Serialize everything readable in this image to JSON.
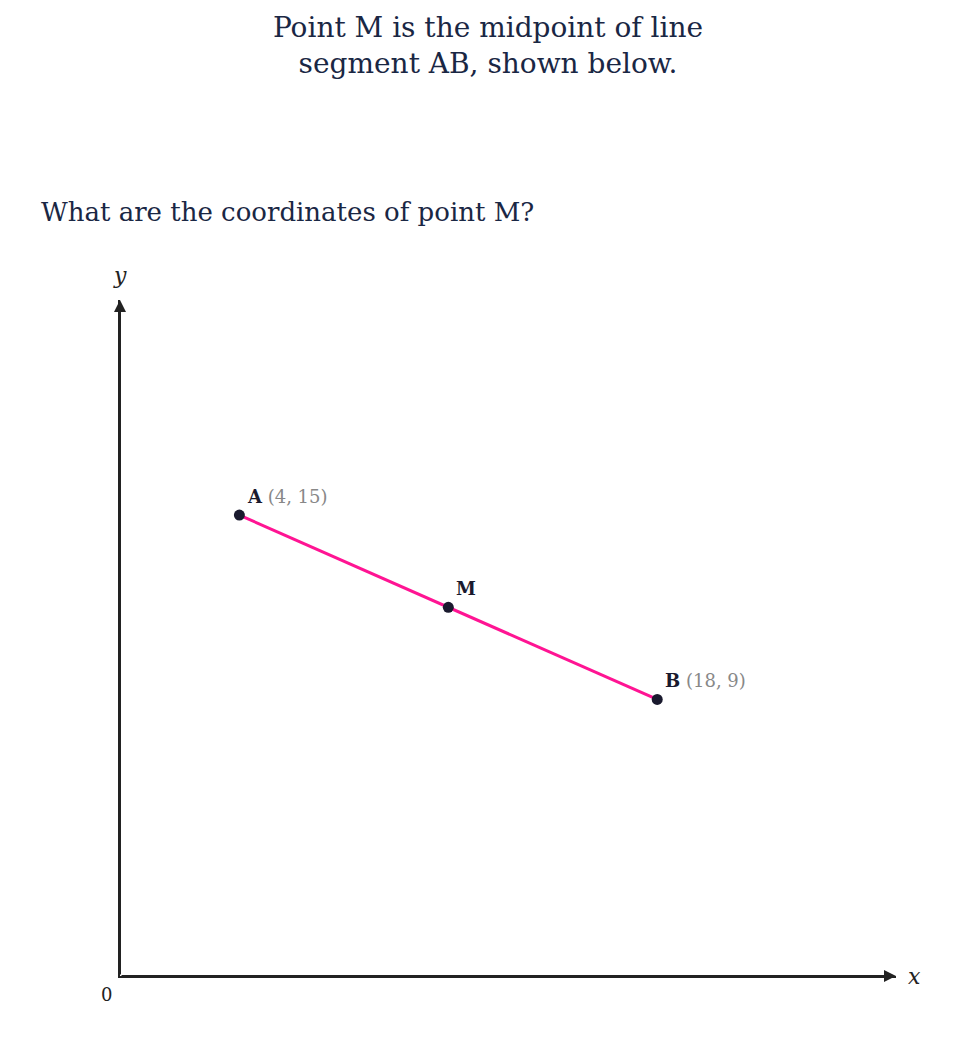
{
  "chart_data": {
    "type": "scatter",
    "title": "Point M is the midpoint of line\nsegment AB, shown below.",
    "subtitle": "What are the coordinates of point M?",
    "xlabel": "x",
    "ylabel": "y",
    "xlim": [
      0,
      26
    ],
    "ylim": [
      0,
      22
    ],
    "grid": false,
    "tick_labels": false,
    "series": [
      {
        "type": "line",
        "color": "#FF1493",
        "x": [
          4,
          18
        ],
        "values": [
          15,
          9
        ]
      },
      {
        "type": "scatter",
        "color": "#1a1a2e",
        "x": [
          4,
          18,
          11
        ],
        "values": [
          15,
          9,
          12
        ]
      }
    ],
    "labels": [
      {
        "x": 4,
        "y": 15,
        "text": [
          "A",
          "(4, 15)"
        ],
        "colors": [
          "#1a1a2e",
          "#888888"
        ]
      },
      {
        "x": 18,
        "y": 9,
        "text": [
          "B",
          "(18, 9)"
        ],
        "colors": [
          "#1a1a2e",
          "#888888"
        ]
      },
      {
        "x": 11,
        "y": 12,
        "text": [
          "M"
        ],
        "colors": [
          "#1a1a2e"
        ]
      }
    ],
    "annotations": [
      {
        "text": "0",
        "x": 0,
        "y": 0
      }
    ]
  }
}
